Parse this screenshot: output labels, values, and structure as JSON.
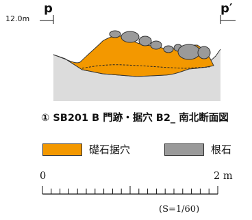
{
  "section": {
    "left_label": "p",
    "right_label": "p′",
    "elevation": "12.0m"
  },
  "caption": "① SB201 B 門跡・据穴 B2_ 南北断面図",
  "legend": [
    {
      "label": "礎石据穴",
      "color": "#f39800"
    },
    {
      "label": "根石",
      "color": "#9a9a9a"
    }
  ],
  "scale_bar": {
    "start": "0",
    "end": "2 m",
    "ratio": "(S=1/60)",
    "divisions": 20
  },
  "colors": {
    "ground": "#dcdcdc",
    "fill": "#f39800",
    "stone": "#9a9a9a"
  }
}
